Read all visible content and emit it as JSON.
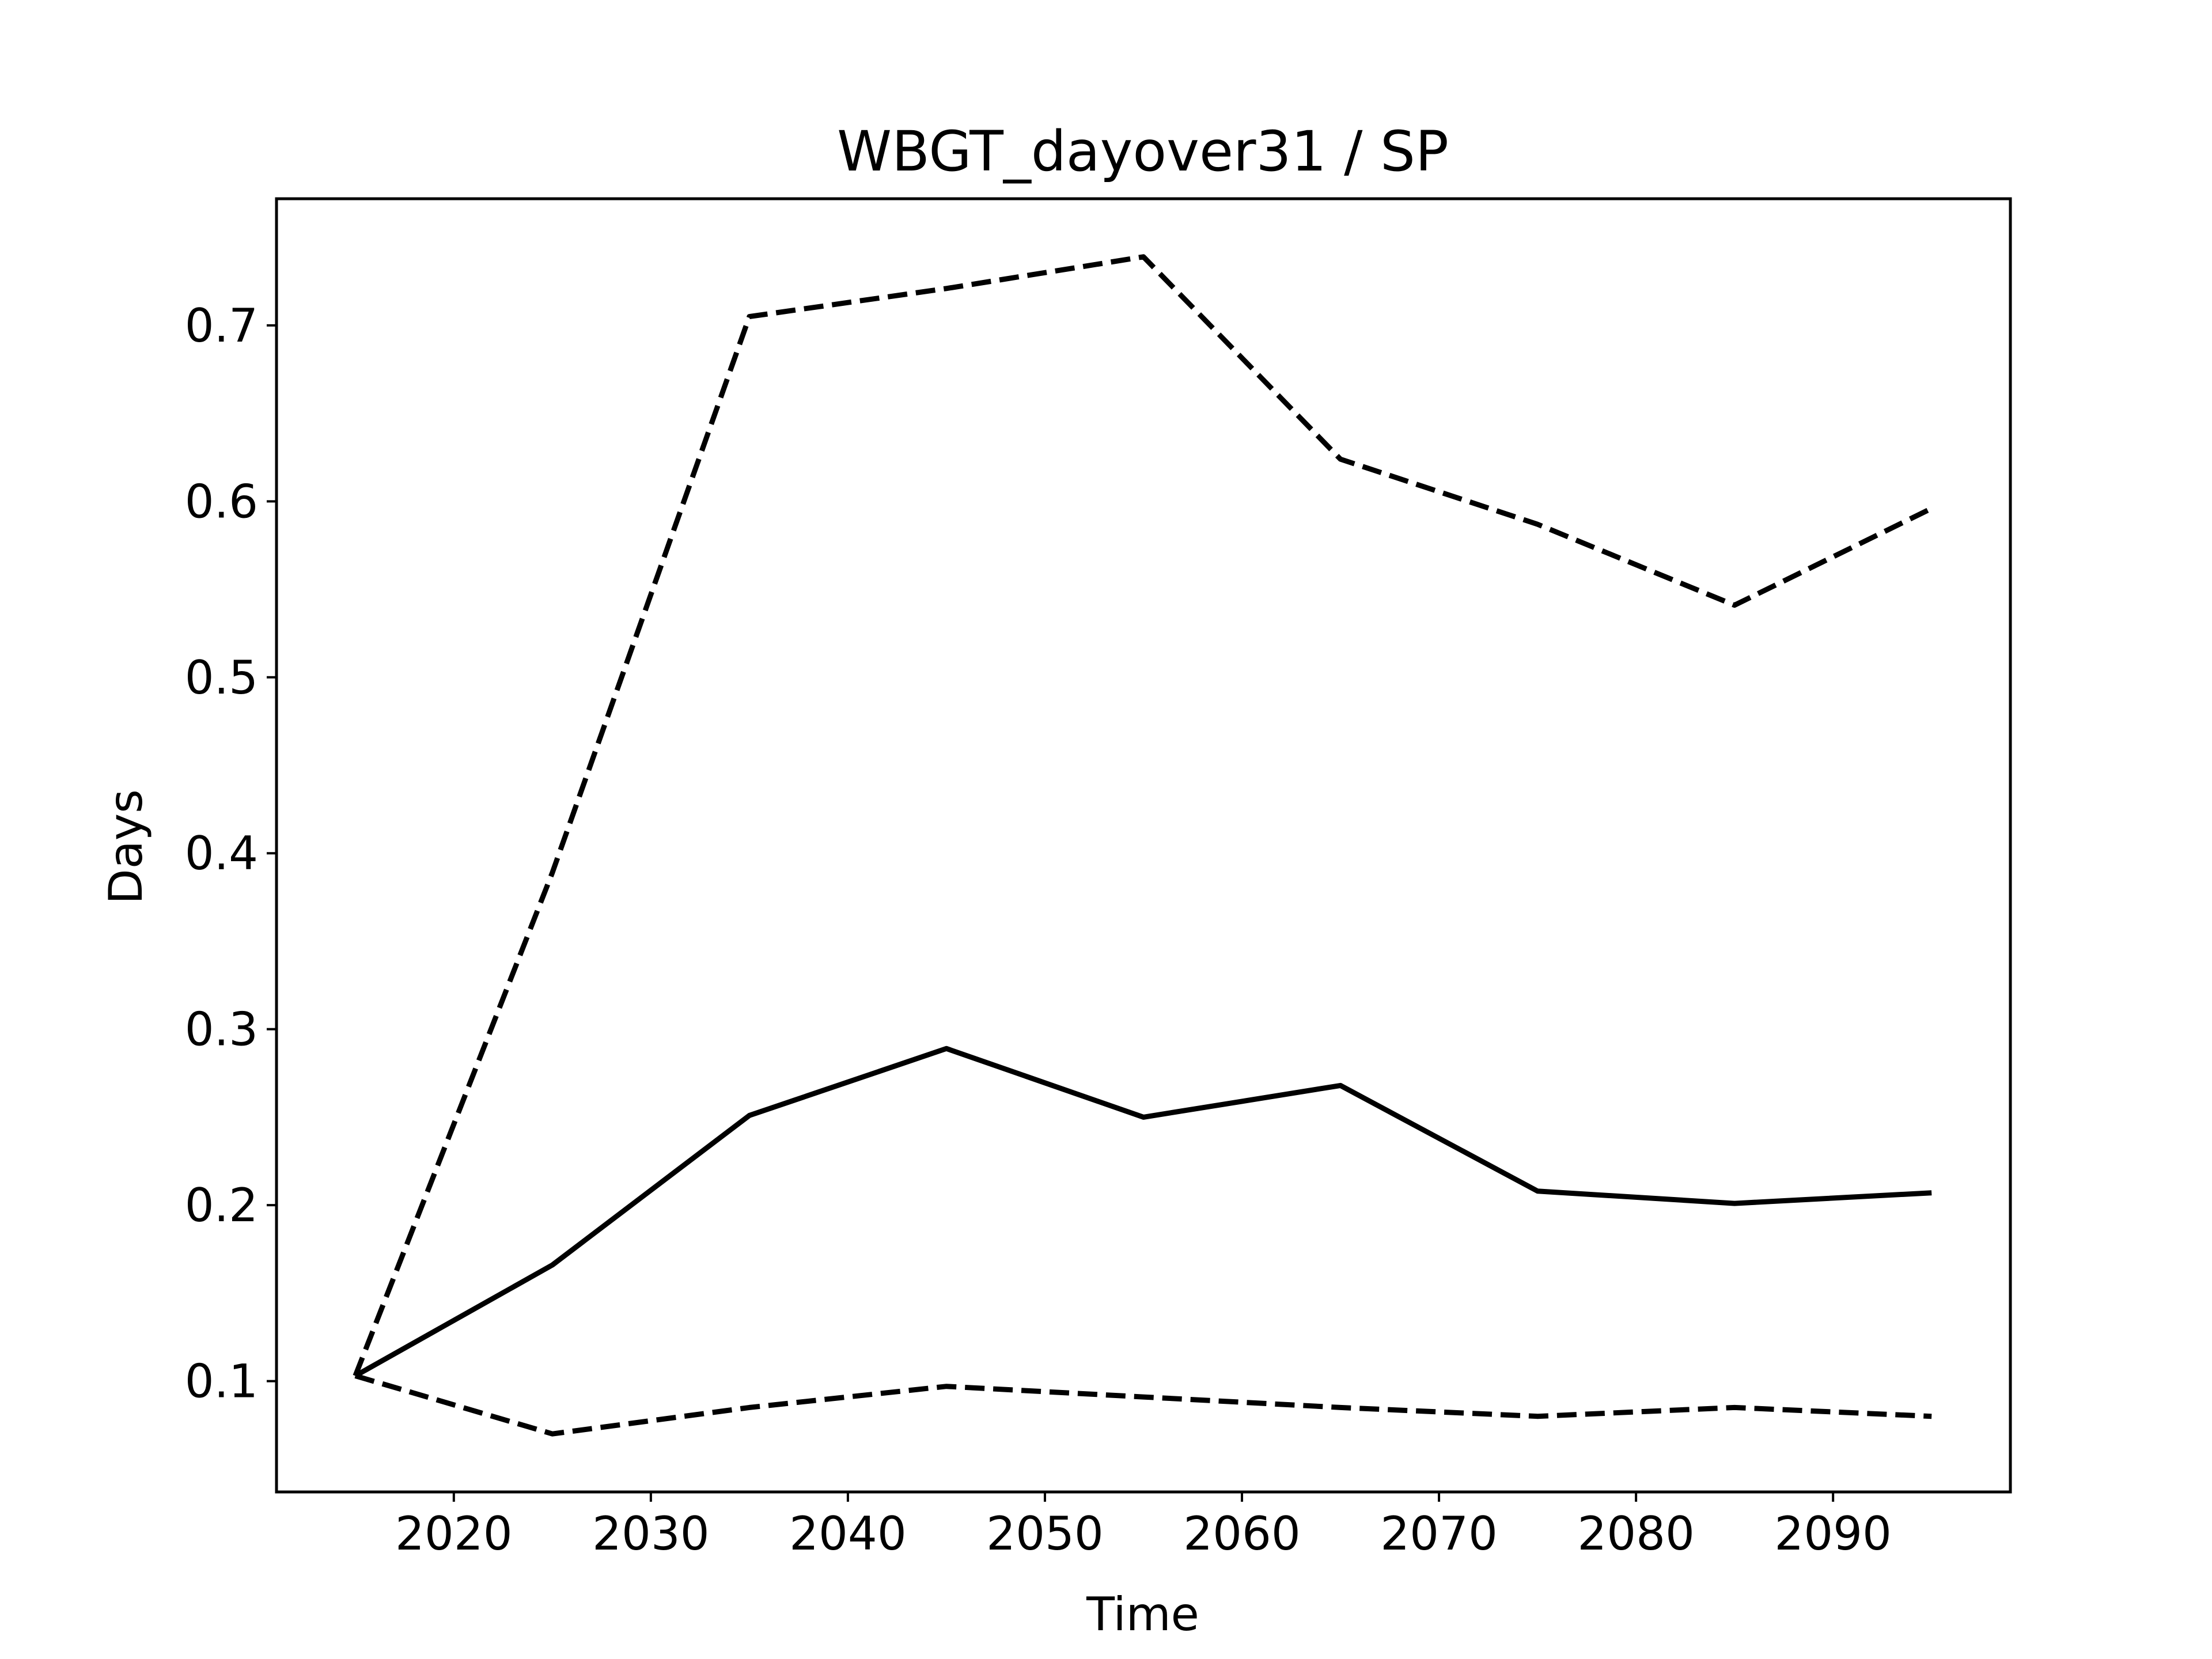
{
  "chart_data": {
    "type": "line",
    "title": "WBGT_dayover31 / SP",
    "xlabel": "Time",
    "ylabel": "Days",
    "x": [
      2015,
      2025,
      2035,
      2045,
      2055,
      2065,
      2075,
      2085,
      2095
    ],
    "xlim": [
      2011,
      2099
    ],
    "ylim": [
      0.037,
      0.772
    ],
    "xticks": [
      2020,
      2030,
      2040,
      2050,
      2060,
      2070,
      2080,
      2090
    ],
    "yticks": [
      0.1,
      0.2,
      0.3,
      0.4,
      0.5,
      0.6,
      0.7
    ],
    "ytick_labels": [
      "0.1",
      "0.2",
      "0.3",
      "0.4",
      "0.5",
      "0.6",
      "0.7"
    ],
    "grid": false,
    "legend": "none",
    "series": [
      {
        "style": "solid",
        "color": "#000000",
        "values": [
          0.103,
          0.166,
          0.251,
          0.289,
          0.25,
          0.268,
          0.208,
          0.201,
          0.207
        ]
      },
      {
        "style": "dashed",
        "color": "#000000",
        "values": [
          0.103,
          0.389,
          0.705,
          0.721,
          0.739,
          0.624,
          0.587,
          0.541,
          0.596
        ]
      },
      {
        "style": "dashed",
        "color": "#000000",
        "values": [
          0.103,
          0.07,
          0.085,
          0.097,
          0.091,
          0.085,
          0.08,
          0.085,
          0.08
        ]
      }
    ]
  }
}
